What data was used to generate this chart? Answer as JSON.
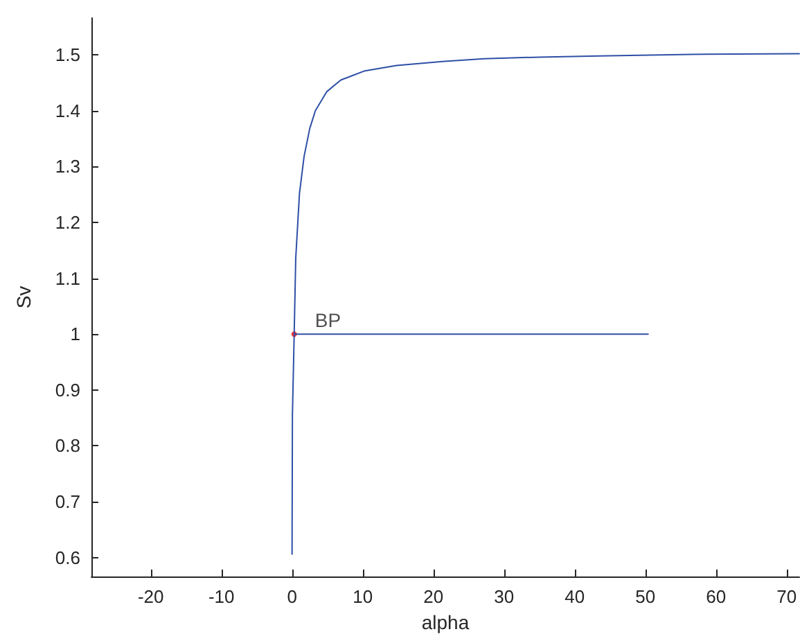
{
  "chart_data": {
    "type": "line",
    "xlabel": "alpha",
    "ylabel": "Sv",
    "xlim": [
      -28.4,
      71.8
    ],
    "ylim": [
      0.566,
      1.566
    ],
    "xticks": [
      -20,
      -10,
      0,
      10,
      20,
      30,
      40,
      50,
      60,
      70
    ],
    "yticks": [
      0.6,
      0.7,
      0.8,
      0.9,
      1,
      1.1,
      1.2,
      1.3,
      1.4,
      1.5
    ],
    "grid": false,
    "marker": "none",
    "line_style": "solid",
    "series": [
      {
        "color": "#2f4fa6",
        "x": [
          0,
          0.05,
          0.3,
          0.52,
          1.05,
          1.7,
          2.5,
          3.3,
          4.9,
          6.9,
          10.2,
          14.8,
          21.3,
          27.2,
          35,
          43.5,
          56.6,
          71.8
        ],
        "values": [
          0.606,
          0.854,
          1,
          1.136,
          1.252,
          1.318,
          1.368,
          1.4,
          1.434,
          1.455,
          1.471,
          1.481,
          1.488,
          1.493,
          1.496,
          1.498,
          1.501,
          1.502
        ]
      },
      {
        "color": "#2f4fa6",
        "x": [
          0.3,
          50.4
        ],
        "values": [
          1,
          1
        ]
      },
      {
        "type": "scatter",
        "marker": "circle",
        "color": "#ff0000",
        "x": [
          0.3
        ],
        "values": [
          1
        ]
      }
    ],
    "annotations": [
      {
        "text": "BP",
        "x": 0.3,
        "y": 1
      }
    ]
  }
}
